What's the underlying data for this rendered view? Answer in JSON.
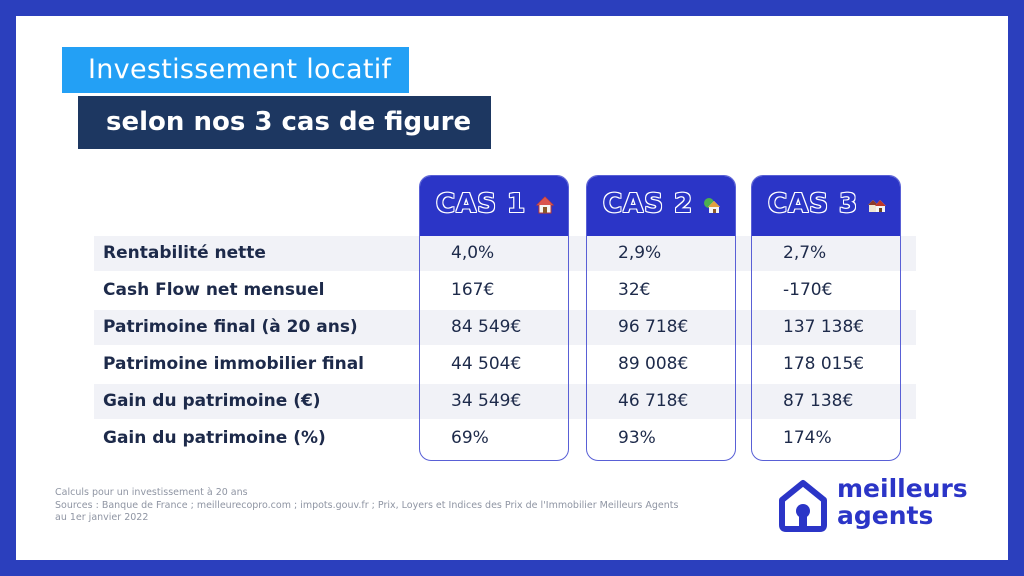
{
  "header": {
    "title_line1": "Investissement locatif",
    "title_line2": "selon nos 3 cas de figure"
  },
  "columns": [
    {
      "title": "CAS 1",
      "icon": "house-icon"
    },
    {
      "title": "CAS 2",
      "icon": "house-tree-icon"
    },
    {
      "title": "CAS 3",
      "icon": "houses-icon"
    }
  ],
  "rows": [
    {
      "label": "Rentabilité nette",
      "values": [
        "4,0%",
        "2,9%",
        "2,7%"
      ]
    },
    {
      "label": "Cash Flow net mensuel",
      "values": [
        "167€",
        "32€",
        "-170€"
      ]
    },
    {
      "label": "Patrimoine final (à 20 ans)",
      "values": [
        "84 549€",
        "96 718€",
        "137 138€"
      ]
    },
    {
      "label": "Patrimoine immobilier final",
      "values": [
        "44 504€",
        "89 008€",
        "178 015€"
      ]
    },
    {
      "label": "Gain du patrimoine (€)",
      "values": [
        "34 549€",
        "46 718€",
        "87 138€"
      ]
    },
    {
      "label": "Gain du patrimoine (%)",
      "values": [
        "69%",
        "93%",
        "174%"
      ]
    }
  ],
  "notes": {
    "line1": "Calculs pour un investissement à 20 ans",
    "line2": "Sources : Banque de France ; meilleurecopro.com ; impots.gouv.fr ; Prix, Loyers et Indices des Prix de l'Immobilier Meilleurs Agents",
    "line3": "au 1er janvier 2022"
  },
  "logo": {
    "line1": "meilleurs",
    "line2": "agents"
  },
  "colors": {
    "border": "#2b3fbd",
    "accent_blue": "#2b35c7",
    "title_light": "#23a0f5",
    "title_dark": "#1d3761",
    "stripe": "#f1f2f7"
  }
}
